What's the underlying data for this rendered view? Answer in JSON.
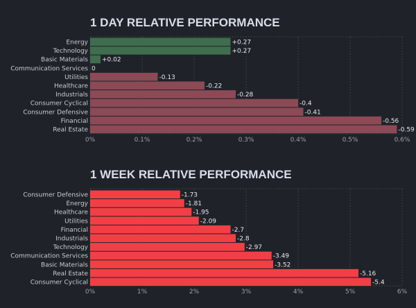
{
  "colors": {
    "background": "#1f2329",
    "grid": "#3a3f47",
    "positive_day": "#3f6d4d",
    "zero_day": "#4a4e55",
    "negative_day": "#8b4a55",
    "negative_week": "#f23f45"
  },
  "chart_data": [
    {
      "type": "bar",
      "orientation": "horizontal",
      "title": "1 DAY RELATIVE PERFORMANCE",
      "categories": [
        "Energy",
        "Technology",
        "Basic Materials",
        "Communication Services",
        "Utilities",
        "Healthcare",
        "Industrials",
        "Consumer Cyclical",
        "Consumer Defensive",
        "Financial",
        "Real Estate"
      ],
      "values": [
        0.27,
        0.27,
        0.02,
        0,
        -0.13,
        -0.22,
        -0.28,
        -0.4,
        -0.41,
        -0.56,
        -0.59
      ],
      "value_labels": [
        "+0.27",
        "+0.27",
        "+0.02",
        "0",
        "-0.13",
        "-0.22",
        "-0.28",
        "-0.4",
        "-0.41",
        "-0.56",
        "-0.59"
      ],
      "bar_magnitude": "absolute value",
      "xlim": [
        0,
        0.6
      ],
      "xticks": [
        "0%",
        "0.1%",
        "0.2%",
        "0.3%",
        "0.4%",
        "0.5%",
        "0.6%"
      ],
      "grid": true
    },
    {
      "type": "bar",
      "orientation": "horizontal",
      "title": "1 WEEK RELATIVE PERFORMANCE",
      "categories": [
        "Consumer Defensive",
        "Energy",
        "Healthcare",
        "Utilities",
        "Financial",
        "Industrials",
        "Technology",
        "Communication Services",
        "Basic Materials",
        "Real Estate",
        "Consumer Cyclical"
      ],
      "values": [
        -1.73,
        -1.81,
        -1.95,
        -2.09,
        -2.7,
        -2.8,
        -2.97,
        -3.49,
        -3.52,
        -5.16,
        -5.4
      ],
      "value_labels": [
        "-1.73",
        "-1.81",
        "-1.95",
        "-2.09",
        "-2.7",
        "-2.8",
        "-2.97",
        "-3.49",
        "-3.52",
        "-5.16",
        "-5.4"
      ],
      "bar_magnitude": "absolute value",
      "xlim": [
        0,
        6
      ],
      "xticks": [
        "0%",
        "1%",
        "2%",
        "3%",
        "4%",
        "5%",
        "6%"
      ],
      "grid": true
    }
  ]
}
